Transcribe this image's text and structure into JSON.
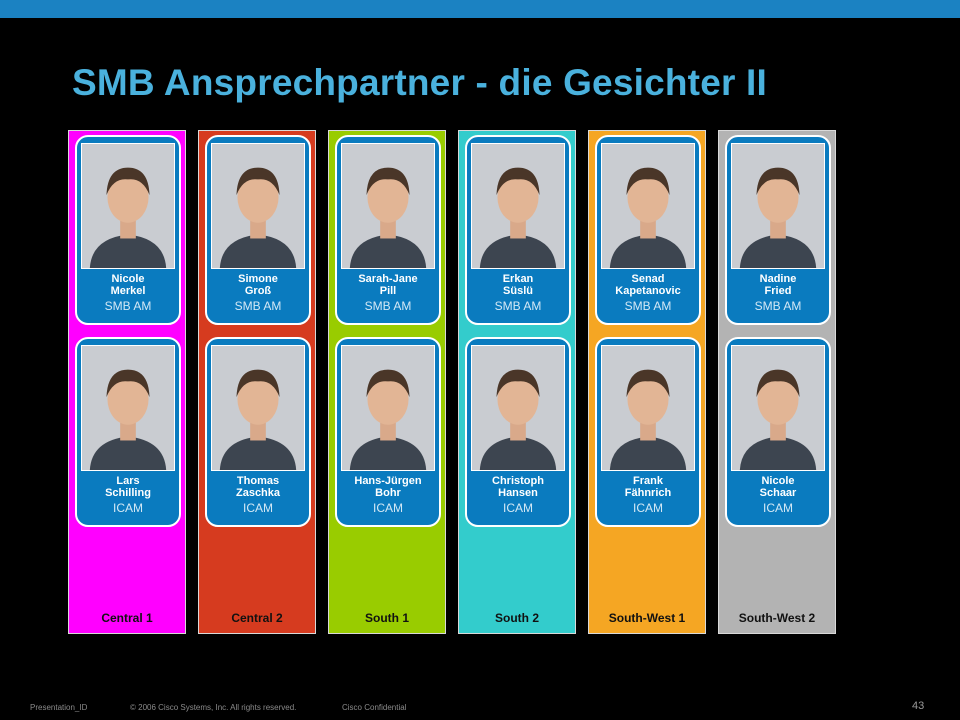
{
  "header": {
    "title": "SMB Ansprechpartner - die Gesichter II"
  },
  "columns": [
    {
      "region": "Central 1",
      "color": "#ff00ff",
      "top": {
        "first": "Nicole",
        "last": "Merkel",
        "role": "SMB AM"
      },
      "bottom": {
        "first": "Lars",
        "last": "Schilling",
        "role": "ICAM"
      }
    },
    {
      "region": "Central 2",
      "color": "#d63b1f",
      "top": {
        "first": "Simone",
        "last": "Groß",
        "role": "SMB AM"
      },
      "bottom": {
        "first": "Thomas",
        "last": "Zaschka",
        "role": "ICAM"
      }
    },
    {
      "region": "South 1",
      "color": "#99cc00",
      "top": {
        "first": "Sarah-Jane",
        "last": "Pill",
        "role": "SMB AM"
      },
      "bottom": {
        "first": "Hans-Jürgen",
        "last": "Bohr",
        "role": "ICAM"
      }
    },
    {
      "region": "South 2",
      "color": "#33cccc",
      "top": {
        "first": "Erkan",
        "last": "Süslü",
        "role": "SMB AM"
      },
      "bottom": {
        "first": "Christoph",
        "last": "Hansen",
        "role": "ICAM"
      }
    },
    {
      "region": "South-West 1",
      "color": "#f5a623",
      "top": {
        "first": "Senad",
        "last": "Kapetanovic",
        "role": "SMB AM"
      },
      "bottom": {
        "first": "Frank",
        "last": "Fähnrich",
        "role": "ICAM"
      }
    },
    {
      "region": "South-West 2",
      "color": "#b3b3b3",
      "top": {
        "first": "Nadine",
        "last": "Fried",
        "role": "SMB AM"
      },
      "bottom": {
        "first": "Nicole",
        "last": "Schaar",
        "role": "ICAM"
      }
    }
  ],
  "footer": {
    "presentation_id": "Presentation_ID",
    "copyright": "© 2006 Cisco Systems, Inc. All rights reserved.",
    "confidential": "Cisco Confidential",
    "page_number": "43"
  }
}
